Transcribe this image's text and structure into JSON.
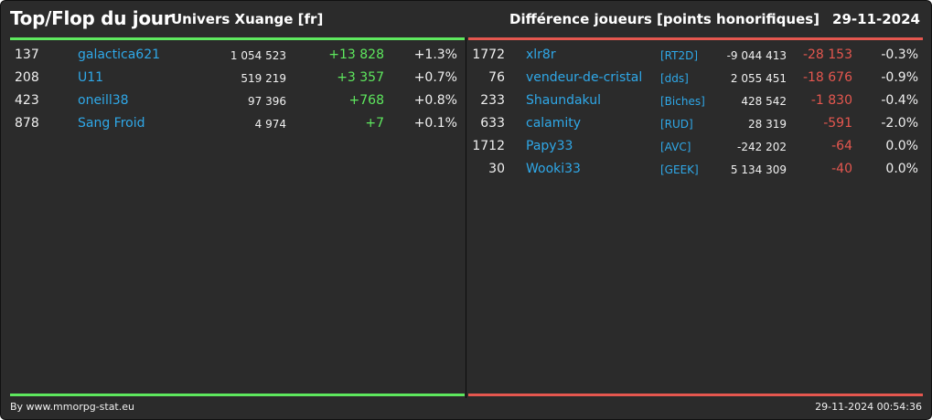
{
  "header": {
    "title": "Top/Flop du jour",
    "universe": "Univers Xuange [fr]",
    "metric": "Différence joueurs [points honorifiques]",
    "date": "29-11-2024"
  },
  "colors": {
    "top_accent": "#5ee85e",
    "flop_accent": "#e5574f",
    "name_color": "#2fa8e8",
    "background": "#2b2b2b"
  },
  "top": [
    {
      "rank": "137",
      "name": "galactica621",
      "points": "1 054 523",
      "diff": "+13 828",
      "pct": "+1.3%"
    },
    {
      "rank": "208",
      "name": "U11",
      "points": "519 219",
      "diff": "+3 357",
      "pct": "+0.7%"
    },
    {
      "rank": "423",
      "name": "oneill38",
      "points": "97 396",
      "diff": "+768",
      "pct": "+0.8%"
    },
    {
      "rank": "878",
      "name": "Sang Froid",
      "points": "4 974",
      "diff": "+7",
      "pct": "+0.1%"
    }
  ],
  "flop": [
    {
      "rank": "1772",
      "name": "xlr8r",
      "alliance": "[RT2D]",
      "points": "-9 044 413",
      "diff": "-28 153",
      "pct": "-0.3%"
    },
    {
      "rank": "76",
      "name": "vendeur-de-cristal",
      "alliance": "[dds]",
      "points": "2 055 451",
      "diff": "-18 676",
      "pct": "-0.9%"
    },
    {
      "rank": "233",
      "name": "Shaundakul",
      "alliance": "[Biches]",
      "points": "428 542",
      "diff": "-1 830",
      "pct": "-0.4%"
    },
    {
      "rank": "633",
      "name": "calamity",
      "alliance": "[RUD]",
      "points": "28 319",
      "diff": "-591",
      "pct": "-2.0%"
    },
    {
      "rank": "1712",
      "name": "Papy33",
      "alliance": "[AVC]",
      "points": "-242 202",
      "diff": "-64",
      "pct": "0.0%"
    },
    {
      "rank": "30",
      "name": "Wooki33",
      "alliance": "[GEEK]",
      "points": "5 134 309",
      "diff": "-40",
      "pct": "0.0%"
    }
  ],
  "footer": {
    "credit": "By www.mmorpg-stat.eu",
    "timestamp": "29-11-2024 00:54:36"
  }
}
